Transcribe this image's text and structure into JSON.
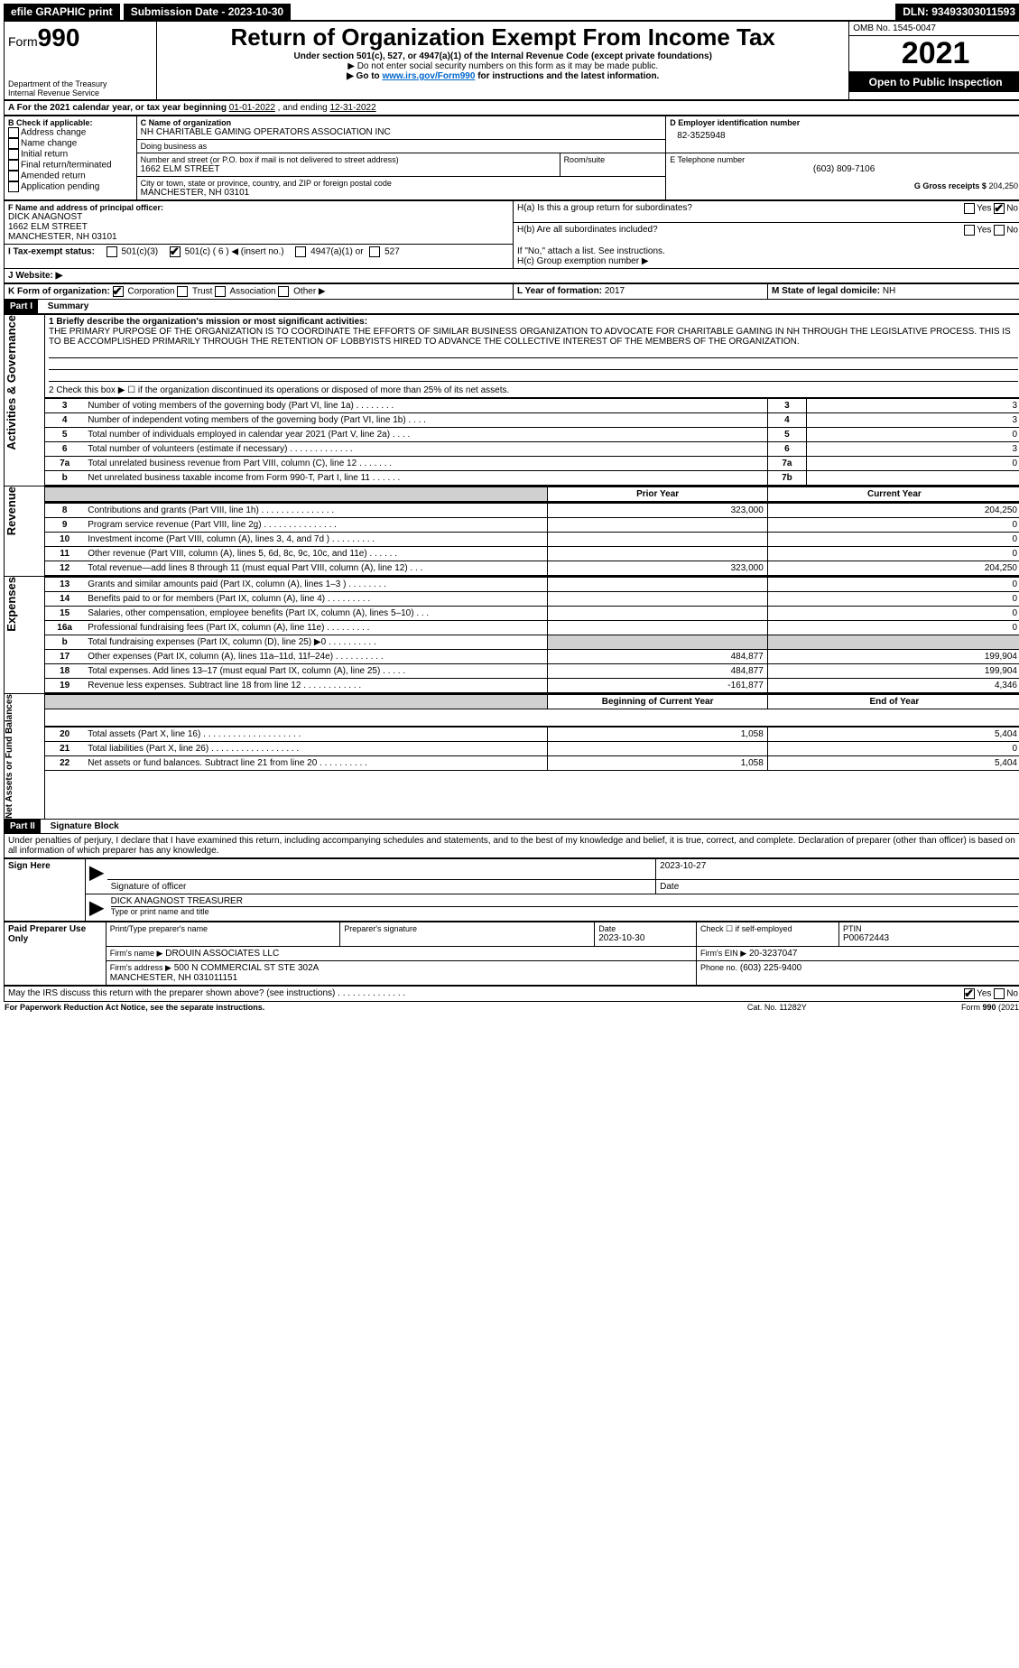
{
  "topbar": {
    "left": "efile GRAPHIC print",
    "submission": "Submission Date - 2023-10-30",
    "dln": "DLN: 93493303011593"
  },
  "header": {
    "form_label": "Form",
    "form_number": "990",
    "title": "Return of Organization Exempt From Income Tax",
    "subtitle": "Under section 501(c), 527, or 4947(a)(1) of the Internal Revenue Code (except private foundations)",
    "ssn_note": "▶ Do not enter social security numbers on this form as it may be made public.",
    "goto_pre": "▶ Go to ",
    "goto_link": "www.irs.gov/Form990",
    "goto_post": " for instructions and the latest information.",
    "dept": "Department of the Treasury\nInternal Revenue Service",
    "omb": "OMB No. 1545-0047",
    "year": "2021",
    "inspect": "Open to Public Inspection"
  },
  "period": {
    "text_pre": "A For the 2021 calendar year, or tax year beginning ",
    "begin": "01-01-2022",
    "mid": " , and ending ",
    "end": "12-31-2022"
  },
  "boxB": {
    "label": "B Check if applicable:",
    "items": [
      "Address change",
      "Name change",
      "Initial return",
      "Final return/terminated",
      "Amended return",
      "Application pending"
    ]
  },
  "boxC": {
    "name_label": "C Name of organization",
    "name": "NH CHARITABLE GAMING OPERATORS ASSOCIATION INC",
    "dba_label": "Doing business as",
    "dba": "",
    "street_label": "Number and street (or P.O. box if mail is not delivered to street address)",
    "room_label": "Room/suite",
    "street": "1662 ELM STREET",
    "city_label": "City or town, state or province, country, and ZIP or foreign postal code",
    "city": "MANCHESTER, NH  03101"
  },
  "boxD": {
    "label": "D Employer identification number",
    "value": "82-3525948"
  },
  "boxE": {
    "label": "E Telephone number",
    "value": "(603) 809-7106"
  },
  "boxG": {
    "label": "G Gross receipts $",
    "value": "204,250"
  },
  "boxF": {
    "label": "F Name and address of principal officer:",
    "name": "DICK ANAGNOST",
    "street": "1662 ELM STREET",
    "city": "MANCHESTER, NH  03101"
  },
  "boxH": {
    "a_label": "H(a)  Is this a group return for subordinates?",
    "a_yes": "Yes",
    "a_no": "No",
    "b_label": "H(b)  Are all subordinates included?",
    "b_yes": "Yes",
    "b_no": "No",
    "b_note": "If \"No,\" attach a list. See instructions.",
    "c_label": "H(c)  Group exemption number ▶"
  },
  "boxI": {
    "label": "I Tax-exempt status:",
    "opt1": "501(c)(3)",
    "opt2_pre": "501(c) ( ",
    "opt2_num": "6",
    "opt2_post": " ) ◀ (insert no.)",
    "opt3": "4947(a)(1) or",
    "opt4": "527"
  },
  "boxJ": {
    "label": "J   Website: ▶"
  },
  "boxK": {
    "label": "K Form of organization:",
    "opts": [
      "Corporation",
      "Trust",
      "Association",
      "Other ▶"
    ]
  },
  "boxL": {
    "label": "L Year of formation:",
    "value": "2017"
  },
  "boxM": {
    "label": "M State of legal domicile:",
    "value": "NH"
  },
  "part1": {
    "header": "Part I",
    "title": "Summary",
    "side_a": "Activities & Governance",
    "side_b": "Revenue",
    "side_c": "Expenses",
    "side_d": "Net Assets or Fund Balances",
    "q1_label": "1  Briefly describe the organization's mission or most significant activities:",
    "q1_text": "THE PRIMARY PURPOSE OF THE ORGANIZATION IS TO COORDINATE THE EFFORTS OF SIMILAR BUSINESS ORGANIZATION TO ADVOCATE FOR CHARITABLE GAMING IN NH THROUGH THE LEGISLATIVE PROCESS. THIS IS TO BE ACCOMPLISHED PRIMARILY THROUGH THE RETENTION OF LOBBYISTS HIRED TO ADVANCE THE COLLECTIVE INTEREST OF THE MEMBERS OF THE ORGANIZATION.",
    "q2": "2    Check this box ▶ ☐  if the organization discontinued its operations or disposed of more than 25% of its net assets.",
    "rows_a": [
      {
        "n": "3",
        "label": "Number of voting members of the governing body (Part VI, line 1a)",
        "box": "3",
        "val": "3"
      },
      {
        "n": "4",
        "label": "Number of independent voting members of the governing body (Part VI, line 1b)",
        "box": "4",
        "val": "3"
      },
      {
        "n": "5",
        "label": "Total number of individuals employed in calendar year 2021 (Part V, line 2a)",
        "box": "5",
        "val": "0"
      },
      {
        "n": "6",
        "label": "Total number of volunteers (estimate if necessary)",
        "box": "6",
        "val": "3"
      },
      {
        "n": "7a",
        "label": "Total unrelated business revenue from Part VIII, column (C), line 12",
        "box": "7a",
        "val": "0"
      },
      {
        "n": "b",
        "label": "Net unrelated business taxable income from Form 990-T, Part I, line 11",
        "box": "7b",
        "val": ""
      }
    ],
    "col_prior": "Prior Year",
    "col_current": "Current Year",
    "rows_b": [
      {
        "n": "8",
        "label": "Contributions and grants (Part VIII, line 1h)",
        "prior": "323,000",
        "curr": "204,250"
      },
      {
        "n": "9",
        "label": "Program service revenue (Part VIII, line 2g)",
        "prior": "",
        "curr": "0"
      },
      {
        "n": "10",
        "label": "Investment income (Part VIII, column (A), lines 3, 4, and 7d )",
        "prior": "",
        "curr": "0"
      },
      {
        "n": "11",
        "label": "Other revenue (Part VIII, column (A), lines 5, 6d, 8c, 9c, 10c, and 11e)",
        "prior": "",
        "curr": "0"
      },
      {
        "n": "12",
        "label": "Total revenue—add lines 8 through 11 (must equal Part VIII, column (A), line 12)",
        "prior": "323,000",
        "curr": "204,250"
      }
    ],
    "rows_c": [
      {
        "n": "13",
        "label": "Grants and similar amounts paid (Part IX, column (A), lines 1–3 )",
        "prior": "",
        "curr": "0"
      },
      {
        "n": "14",
        "label": "Benefits paid to or for members (Part IX, column (A), line 4)",
        "prior": "",
        "curr": "0"
      },
      {
        "n": "15",
        "label": "Salaries, other compensation, employee benefits (Part IX, column (A), lines 5–10)",
        "prior": "",
        "curr": "0"
      },
      {
        "n": "16a",
        "label": "Professional fundraising fees (Part IX, column (A), line 11e)",
        "prior": "",
        "curr": "0"
      },
      {
        "n": "b",
        "label": "Total fundraising expenses (Part IX, column (D), line 25) ▶0",
        "prior": "GRAY",
        "curr": "GRAY"
      },
      {
        "n": "17",
        "label": "Other expenses (Part IX, column (A), lines 11a–11d, 11f–24e)",
        "prior": "484,877",
        "curr": "199,904"
      },
      {
        "n": "18",
        "label": "Total expenses. Add lines 13–17 (must equal Part IX, column (A), line 25)",
        "prior": "484,877",
        "curr": "199,904"
      },
      {
        "n": "19",
        "label": "Revenue less expenses. Subtract line 18 from line 12",
        "prior": "-161,877",
        "curr": "4,346"
      }
    ],
    "col_boy": "Beginning of Current Year",
    "col_eoy": "End of Year",
    "rows_d": [
      {
        "n": "20",
        "label": "Total assets (Part X, line 16)",
        "prior": "1,058",
        "curr": "5,404"
      },
      {
        "n": "21",
        "label": "Total liabilities (Part X, line 26)",
        "prior": "",
        "curr": "0"
      },
      {
        "n": "22",
        "label": "Net assets or fund balances. Subtract line 21 from line 20",
        "prior": "1,058",
        "curr": "5,404"
      }
    ]
  },
  "part2": {
    "header": "Part II",
    "title": "Signature Block",
    "decl": "Under penalties of perjury, I declare that I have examined this return, including accompanying schedules and statements, and to the best of my knowledge and belief, it is true, correct, and complete. Declaration of preparer (other than officer) is based on all information of which preparer has any knowledge.",
    "sign_here": "Sign Here",
    "sig_label": "Signature of officer",
    "sig_date": "2023-10-27",
    "date_label": "Date",
    "name_title": "DICK ANAGNOST TREASURER",
    "name_title_label": "Type or print name and title",
    "paid": "Paid Preparer Use Only",
    "prep_name_label": "Print/Type preparer's name",
    "prep_sig_label": "Preparer's signature",
    "prep_date_label": "Date",
    "prep_date": "2023-10-30",
    "check_self": "Check ☐ if self-employed",
    "ptin_label": "PTIN",
    "ptin": "P00672443",
    "firm_name_label": "Firm's name    ▶",
    "firm_name": "DROUIN ASSOCIATES LLC",
    "firm_ein_label": "Firm's EIN ▶",
    "firm_ein": "20-3237047",
    "firm_addr_label": "Firm's address ▶",
    "firm_addr": "500 N COMMERCIAL ST STE 302A\nMANCHESTER, NH  031011151",
    "phone_label": "Phone no.",
    "phone": "(603) 225-9400",
    "discuss": "May the IRS discuss this return with the preparer shown above? (see instructions)",
    "yes": "Yes",
    "no": "No"
  },
  "footer": {
    "left": "For Paperwork Reduction Act Notice, see the separate instructions.",
    "mid": "Cat. No. 11282Y",
    "right": "Form 990 (2021)"
  }
}
